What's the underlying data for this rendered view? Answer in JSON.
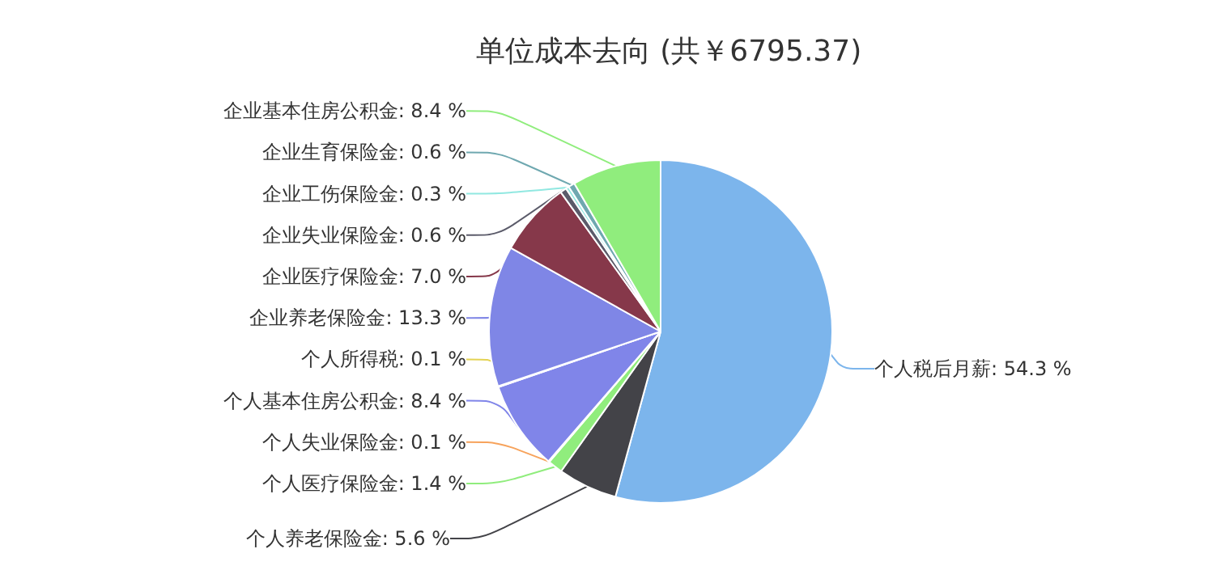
{
  "chart_data": {
    "type": "pie",
    "title": "单位成本去向 (共￥6795.37)",
    "categories": [
      "个人税后月薪",
      "个人养老保险金",
      "个人医疗保险金",
      "个人失业保险金",
      "个人基本住房公积金",
      "个人所得税",
      "企业养老保险金",
      "企业医疗保险金",
      "企业失业保险金",
      "企业工伤保险金",
      "企业生育保险金",
      "企业基本住房公积金"
    ],
    "values": [
      54.3,
      5.6,
      1.4,
      0.1,
      8.4,
      0.1,
      13.3,
      7.0,
      0.6,
      0.3,
      0.6,
      8.4
    ],
    "colors": [
      "#7cb5ec",
      "#434348",
      "#90ed7d",
      "#f7a35c",
      "#8085e9",
      "#e4d354",
      "#7f86e6",
      "#86384a",
      "#5b5b6a",
      "#91e8e1",
      "#6fa8b0",
      "#90ed7d"
    ],
    "value_labels": [
      ": 54.3 %",
      ": 5.6 %",
      ": 1.4 %",
      ": 0.1 %",
      ": 8.4 %",
      ": 0.1 %",
      ": 13.3 %",
      ": 7.0 %",
      ": 0.6 %",
      ": 0.3 %",
      ": 0.6 %",
      ": 8.4 %"
    ],
    "legend": false
  }
}
